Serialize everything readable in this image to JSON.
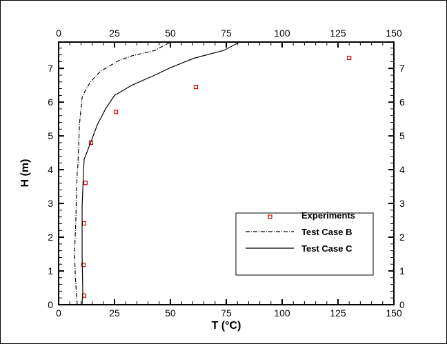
{
  "chart_data": {
    "type": "scatter",
    "xlabel": "T (°C)",
    "ylabel": "H (m)",
    "xlim": [
      0,
      150
    ],
    "ylim": [
      0,
      7.78
    ],
    "xticks": [
      0,
      25,
      50,
      75,
      100,
      125,
      150
    ],
    "yticks": [
      0,
      1,
      2,
      3,
      4,
      5,
      6,
      7
    ],
    "grid": false,
    "legend_placement": "bottom-right",
    "series": [
      {
        "name": "Experiments",
        "style": "marker-square",
        "color": "#cc0000",
        "points": [
          [
            11.4,
            0.27
          ],
          [
            11.1,
            1.18
          ],
          [
            11.4,
            2.41
          ],
          [
            12.0,
            3.61
          ],
          [
            14.5,
            4.8
          ],
          [
            25.6,
            5.71
          ],
          [
            61.4,
            6.45
          ],
          [
            130,
            7.31
          ]
        ]
      },
      {
        "name": "Test Case B",
        "style": "dash-dot",
        "color": "#000000",
        "points": [
          [
            8.3,
            0
          ],
          [
            7.5,
            0.8
          ],
          [
            7.1,
            1.5
          ],
          [
            7.7,
            2.5
          ],
          [
            8.0,
            3.35
          ],
          [
            8.3,
            3.9
          ],
          [
            8.6,
            4.1
          ],
          [
            9.3,
            5.33
          ],
          [
            10.5,
            6.14
          ],
          [
            12,
            6.35
          ],
          [
            14.2,
            6.6
          ],
          [
            18.8,
            6.92
          ],
          [
            22.5,
            7.06
          ],
          [
            26.5,
            7.22
          ],
          [
            32.7,
            7.37
          ],
          [
            43,
            7.53
          ],
          [
            50,
            7.78
          ]
        ]
      },
      {
        "name": "Test Case C",
        "style": "solid",
        "color": "#000000",
        "points": [
          [
            10.5,
            0
          ],
          [
            10.8,
            0.4
          ],
          [
            10.5,
            1.5
          ],
          [
            10.5,
            2.9
          ],
          [
            11.1,
            3.9
          ],
          [
            11.4,
            4.3
          ],
          [
            14.2,
            4.78
          ],
          [
            17.3,
            5.33
          ],
          [
            21,
            5.8
          ],
          [
            25,
            6.2
          ],
          [
            32.7,
            6.5
          ],
          [
            43,
            6.8
          ],
          [
            50,
            7.02
          ],
          [
            60.5,
            7.3
          ],
          [
            73.8,
            7.53
          ],
          [
            81,
            7.78
          ]
        ]
      }
    ]
  }
}
